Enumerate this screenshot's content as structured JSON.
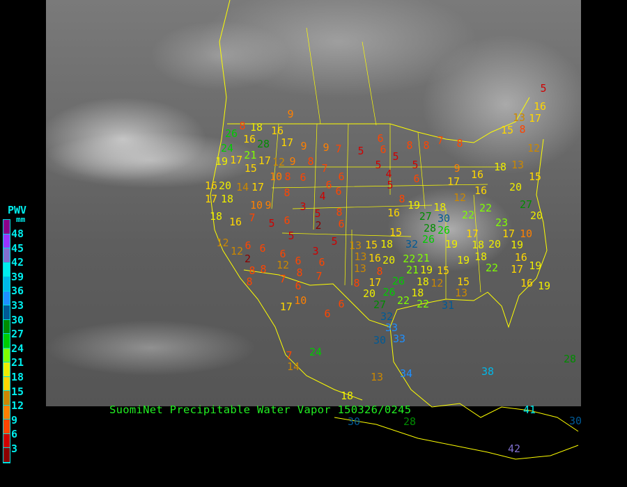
{
  "caption": "SuomiNet Precipitable Water Vapor 150326/0245",
  "legend": {
    "title": "PWV",
    "unit": "mm",
    "labels": [
      "48",
      "45",
      "42",
      "39",
      "36",
      "33",
      "30",
      "27",
      "24",
      "21",
      "18",
      "15",
      "12",
      "9",
      "6",
      "3"
    ],
    "colors": [
      "#8b008b",
      "#9933ff",
      "#8070d0",
      "#00eeee",
      "#00b8e8",
      "#1e90ff",
      "#005a96",
      "#008c00",
      "#00cc00",
      "#80ff00",
      "#eeee00",
      "#ffd700",
      "#cc8800",
      "#ff8000",
      "#ff4500",
      "#d00000",
      "#8b0000"
    ]
  },
  "stations": [
    5,
    16,
    13,
    17,
    8,
    15,
    9,
    26,
    8,
    18,
    16,
    16,
    28,
    17,
    9,
    9,
    7,
    5,
    6,
    6,
    5,
    8,
    8,
    7,
    8,
    12,
    24,
    19,
    17,
    21,
    15,
    17,
    12,
    9,
    8,
    7,
    5,
    5,
    9,
    18,
    13,
    4,
    6,
    6,
    16,
    20,
    14,
    17,
    10,
    8,
    6,
    4,
    6,
    5,
    6,
    17,
    16,
    20,
    15,
    17,
    18,
    10,
    9,
    3,
    8,
    8,
    12,
    16,
    27,
    20,
    18,
    16,
    7,
    5,
    6,
    5,
    2,
    8,
    6,
    16,
    19,
    18,
    27,
    30,
    28,
    26,
    22,
    22,
    23,
    17,
    10,
    5,
    5,
    15,
    26,
    32,
    19,
    17,
    18,
    20,
    19,
    12,
    6,
    6,
    6,
    3,
    13,
    15,
    18,
    12,
    2,
    6,
    6,
    13,
    16,
    20,
    22,
    21,
    19,
    18,
    16,
    19,
    8,
    8,
    12,
    8,
    13,
    19,
    15,
    17,
    22,
    8,
    7,
    6,
    7,
    8,
    20,
    17,
    26,
    26,
    21,
    18,
    12,
    18,
    8,
    15,
    13,
    16,
    19,
    17,
    10,
    6,
    27,
    32,
    22,
    22,
    31,
    6,
    24,
    33,
    30,
    33,
    7,
    14,
    13,
    34,
    38,
    18,
    30,
    28,
    30,
    28,
    41,
    42
  ],
  "colors": {
    "border": "#ffff00",
    "caption": "#22ee22",
    "legend_text": "#00eeee"
  }
}
